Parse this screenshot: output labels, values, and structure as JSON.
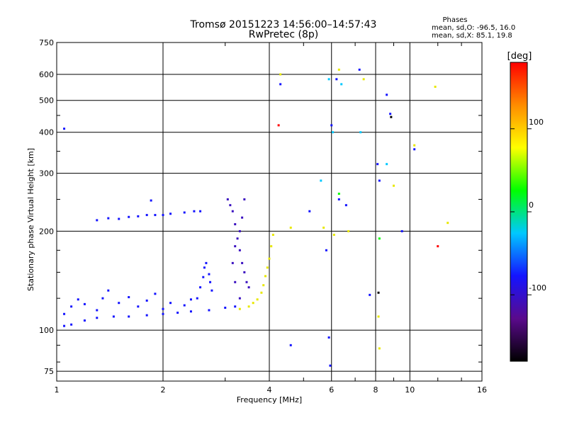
{
  "header": {
    "title": "Tromsø 20151223 14:56:00–14:57:43",
    "subtitle": "RwPretec (8p)"
  },
  "phases_panel": {
    "title": "Phases",
    "line_o": "mean, sd,O: -96.5, 16.0",
    "line_x": "mean, sd,X: 85.1, 19.8"
  },
  "colorbar": {
    "unit_label": "[deg]",
    "tick_labels": [
      "100",
      "0",
      "-100"
    ],
    "tick_values": [
      100,
      0,
      -100
    ],
    "range": [
      -180,
      180
    ],
    "stops": [
      "#000000",
      "#5a0a8c",
      "#1414ff",
      "#00c8ff",
      "#00ff00",
      "#ffff00",
      "#ff8c00",
      "#ff0000"
    ]
  },
  "chart_data": {
    "type": "scatter",
    "title": "Tromsø 20151223 14:56:00–14:57:43",
    "subtitle": "RwPretec (8p)",
    "xlabel": "Frequency [MHz]",
    "ylabel": "Stationary phase Virtual Height [km]",
    "x_scale": "log",
    "y_scale": "log",
    "xlim": [
      1,
      16
    ],
    "ylim": [
      70,
      750
    ],
    "x_ticks": [
      1,
      2,
      4,
      6,
      8,
      10,
      16
    ],
    "x_tick_labels": [
      "1",
      "2",
      "4",
      "6",
      "8",
      "10",
      "16"
    ],
    "y_ticks": [
      75,
      100,
      200,
      300,
      400,
      500,
      600,
      750
    ],
    "y_tick_labels": [
      "75",
      "100",
      "200",
      "300",
      "400",
      "500",
      "600",
      "750"
    ],
    "grid": true,
    "color_encodes": "phase [deg]",
    "series": [
      {
        "color": "#1414ff",
        "points": [
          [
            1.05,
            103
          ],
          [
            1.1,
            104
          ],
          [
            1.2,
            107
          ],
          [
            1.3,
            109
          ],
          [
            1.45,
            110
          ],
          [
            1.6,
            110
          ],
          [
            1.8,
            111
          ],
          [
            2.0,
            112
          ],
          [
            2.2,
            113
          ],
          [
            2.4,
            114
          ],
          [
            2.7,
            115
          ],
          [
            3.0,
            117
          ],
          [
            3.2,
            118
          ]
        ]
      },
      {
        "color": "#1414ff",
        "points": [
          [
            1.05,
            112
          ],
          [
            1.1,
            118
          ],
          [
            1.15,
            124
          ],
          [
            1.2,
            120
          ],
          [
            1.3,
            115
          ],
          [
            1.35,
            125
          ],
          [
            1.4,
            132
          ],
          [
            1.5,
            121
          ],
          [
            1.6,
            126
          ],
          [
            1.7,
            118
          ],
          [
            1.8,
            123
          ],
          [
            1.9,
            129
          ],
          [
            2.0,
            116
          ],
          [
            2.1,
            121
          ],
          [
            2.3,
            119
          ],
          [
            2.4,
            124
          ]
        ]
      },
      {
        "color": "#1414ff",
        "points": [
          [
            1.3,
            216
          ],
          [
            1.4,
            219
          ],
          [
            1.5,
            218
          ],
          [
            1.6,
            221
          ],
          [
            1.7,
            222
          ],
          [
            1.8,
            224
          ],
          [
            1.9,
            224
          ],
          [
            2.0,
            224
          ],
          [
            2.1,
            226
          ],
          [
            2.3,
            228
          ],
          [
            2.45,
            230
          ],
          [
            2.55,
            230
          ]
        ]
      },
      {
        "color": "#1414ff",
        "points": [
          [
            2.5,
            125
          ],
          [
            2.55,
            135
          ],
          [
            2.6,
            145
          ],
          [
            2.62,
            155
          ],
          [
            2.65,
            160
          ],
          [
            2.7,
            148
          ],
          [
            2.72,
            140
          ],
          [
            2.75,
            132
          ]
        ]
      },
      {
        "color": "#3a10c0",
        "points": [
          [
            3.05,
            250
          ],
          [
            3.1,
            240
          ],
          [
            3.15,
            230
          ],
          [
            3.2,
            210
          ],
          [
            3.25,
            190
          ],
          [
            3.3,
            175
          ],
          [
            3.35,
            160
          ],
          [
            3.4,
            150
          ],
          [
            3.45,
            140
          ],
          [
            3.5,
            135
          ],
          [
            3.3,
            125
          ],
          [
            3.2,
            140
          ],
          [
            3.15,
            160
          ],
          [
            3.2,
            180
          ],
          [
            3.3,
            200
          ],
          [
            3.35,
            220
          ],
          [
            3.4,
            250
          ]
        ]
      },
      {
        "color": "#e8e800",
        "points": [
          [
            3.3,
            116
          ],
          [
            3.5,
            118
          ],
          [
            3.6,
            121
          ],
          [
            3.7,
            124
          ],
          [
            3.8,
            130
          ],
          [
            3.85,
            137
          ],
          [
            3.9,
            146
          ],
          [
            3.95,
            155
          ],
          [
            4.0,
            165
          ],
          [
            4.05,
            180
          ],
          [
            4.1,
            195
          ]
        ]
      },
      {
        "color": "#1414ff",
        "points": [
          [
            1.05,
            410
          ],
          [
            1.85,
            248
          ],
          [
            4.3,
            560
          ],
          [
            4.6,
            90
          ],
          [
            5.2,
            230
          ],
          [
            5.8,
            175
          ],
          [
            5.9,
            95
          ],
          [
            5.95,
            78
          ],
          [
            6.0,
            420
          ],
          [
            6.2,
            580
          ],
          [
            6.3,
            250
          ],
          [
            6.6,
            240
          ],
          [
            7.2,
            620
          ],
          [
            7.7,
            128
          ],
          [
            8.1,
            320
          ],
          [
            8.2,
            285
          ],
          [
            8.6,
            520
          ],
          [
            8.8,
            455
          ],
          [
            9.5,
            200
          ],
          [
            10.3,
            355
          ]
        ]
      },
      {
        "color": "#00c8ff",
        "points": [
          [
            5.6,
            285
          ],
          [
            5.9,
            580
          ],
          [
            6.05,
            400
          ],
          [
            6.4,
            560
          ],
          [
            7.25,
            400
          ],
          [
            8.6,
            320
          ]
        ]
      },
      {
        "color": "#e8e800",
        "points": [
          [
            4.3,
            600
          ],
          [
            4.6,
            205
          ],
          [
            5.7,
            205
          ],
          [
            6.1,
            195
          ],
          [
            6.3,
            620
          ],
          [
            6.7,
            200
          ],
          [
            7.4,
            580
          ],
          [
            8.15,
            110
          ],
          [
            8.2,
            88
          ],
          [
            9.0,
            275
          ],
          [
            10.3,
            365
          ],
          [
            11.8,
            550
          ],
          [
            12.8,
            212
          ]
        ]
      },
      {
        "color": "#ff0000",
        "points": [
          [
            4.25,
            420
          ],
          [
            12.0,
            180
          ]
        ]
      },
      {
        "color": "#00ff00",
        "points": [
          [
            8.2,
            190
          ],
          [
            6.3,
            260
          ]
        ]
      },
      {
        "color": "#000000",
        "points": [
          [
            8.15,
            130
          ],
          [
            8.85,
            445
          ]
        ]
      }
    ]
  }
}
